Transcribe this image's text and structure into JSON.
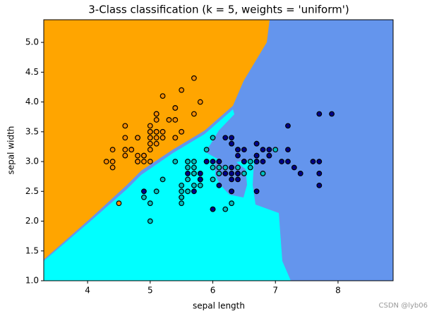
{
  "chart_data": {
    "type": "scatter",
    "title": "3-Class classification (k = 5, weights = 'uniform')",
    "x_label": "sepal length",
    "y_label": "sepal width",
    "watermark": "CSDN @lyb06",
    "xlim": [
      3.3,
      8.88
    ],
    "ylim": [
      1.0,
      5.38
    ],
    "xticks": [
      4,
      5,
      6,
      7,
      8
    ],
    "yticks": [
      {
        "value": 1.0,
        "label": "1.0"
      },
      {
        "value": 1.5,
        "label": "1.5"
      },
      {
        "value": 2.0,
        "label": "2.0"
      },
      {
        "value": 2.5,
        "label": "2.5"
      },
      {
        "value": 3.0,
        "label": "3.0"
      },
      {
        "value": 3.5,
        "label": "3.5"
      },
      {
        "value": 4.0,
        "label": "4.0"
      },
      {
        "value": 4.5,
        "label": "4.5"
      },
      {
        "value": 5.0,
        "label": "5.0"
      }
    ],
    "series": [
      {
        "color": "#ff8c00",
        "x": [
          5.1,
          4.9,
          4.7,
          4.6,
          5.0,
          5.4,
          4.6,
          5.0,
          4.4,
          4.9,
          5.4,
          4.8,
          4.8,
          4.3,
          5.8,
          5.7,
          5.4,
          5.1,
          5.7,
          5.1,
          5.4,
          5.1,
          4.6,
          5.1,
          4.8,
          5.0,
          5.0,
          5.2,
          5.2,
          4.7,
          4.8,
          5.4,
          5.2,
          5.5,
          4.9,
          5.0,
          5.5,
          4.9,
          4.4,
          5.1,
          5.0,
          4.5,
          4.4,
          5.0,
          5.1,
          4.8,
          5.1,
          4.6,
          5.3,
          5.0
        ],
        "values": [
          3.5,
          3.0,
          3.2,
          3.1,
          3.6,
          3.9,
          3.4,
          3.4,
          2.9,
          3.1,
          3.7,
          3.4,
          3.0,
          3.0,
          4.0,
          4.4,
          3.9,
          3.5,
          3.8,
          3.8,
          3.4,
          3.7,
          3.6,
          3.3,
          3.4,
          3.0,
          3.4,
          3.5,
          3.4,
          3.2,
          3.1,
          3.4,
          4.1,
          4.2,
          3.1,
          3.2,
          3.5,
          3.1,
          3.0,
          3.4,
          3.5,
          2.3,
          3.2,
          3.5,
          3.8,
          3.0,
          3.8,
          3.2,
          3.7,
          3.3
        ]
      },
      {
        "color": "#00bfbf",
        "x": [
          7.0,
          6.4,
          6.9,
          5.5,
          6.5,
          5.7,
          6.3,
          4.9,
          6.6,
          5.2,
          5.0,
          5.9,
          6.0,
          6.1,
          5.6,
          6.7,
          5.6,
          5.8,
          6.2,
          5.6,
          5.9,
          6.1,
          6.3,
          6.1,
          6.4,
          6.6,
          6.8,
          6.7,
          6.0,
          5.7,
          5.5,
          5.5,
          5.8,
          6.0,
          5.4,
          6.0,
          6.7,
          6.3,
          5.6,
          5.5,
          5.5,
          6.1,
          5.8,
          5.0,
          5.6,
          5.7,
          5.7,
          6.2,
          5.1,
          5.7
        ],
        "values": [
          3.2,
          3.2,
          3.1,
          2.3,
          2.8,
          2.8,
          3.3,
          2.4,
          2.9,
          2.7,
          2.0,
          3.0,
          2.2,
          2.9,
          2.9,
          3.1,
          3.0,
          2.7,
          2.2,
          2.5,
          3.2,
          2.8,
          2.5,
          2.8,
          2.9,
          3.0,
          2.8,
          3.0,
          2.9,
          2.6,
          2.4,
          2.4,
          2.7,
          2.7,
          3.0,
          3.4,
          3.1,
          2.3,
          3.0,
          2.5,
          2.6,
          3.0,
          2.6,
          2.3,
          2.7,
          3.0,
          2.9,
          2.9,
          2.5,
          2.8
        ]
      },
      {
        "color": "#00008b",
        "x": [
          6.3,
          5.8,
          7.1,
          6.3,
          6.5,
          7.6,
          4.9,
          7.3,
          6.7,
          7.2,
          6.5,
          6.4,
          6.8,
          5.7,
          5.8,
          6.4,
          6.5,
          7.7,
          7.7,
          6.0,
          6.9,
          5.6,
          7.7,
          6.3,
          6.7,
          7.2,
          6.2,
          6.1,
          6.4,
          7.2,
          7.4,
          7.9,
          6.4,
          6.3,
          6.1,
          7.7,
          6.3,
          6.4,
          6.0,
          6.9,
          6.7,
          6.9,
          5.8,
          6.8,
          6.7,
          6.7,
          6.3,
          6.5,
          6.2,
          5.9
        ],
        "values": [
          3.3,
          2.7,
          3.0,
          2.9,
          3.0,
          3.0,
          2.5,
          2.9,
          2.5,
          3.6,
          3.2,
          2.7,
          3.0,
          2.5,
          2.8,
          3.2,
          3.0,
          3.8,
          2.6,
          2.2,
          3.2,
          2.8,
          2.8,
          2.7,
          3.3,
          3.2,
          2.8,
          3.0,
          2.8,
          3.0,
          2.8,
          3.8,
          2.8,
          2.8,
          2.6,
          3.0,
          3.4,
          3.1,
          3.0,
          3.1,
          3.1,
          3.1,
          2.7,
          3.2,
          3.3,
          3.0,
          2.5,
          3.0,
          3.4,
          3.0
        ]
      }
    ]
  }
}
